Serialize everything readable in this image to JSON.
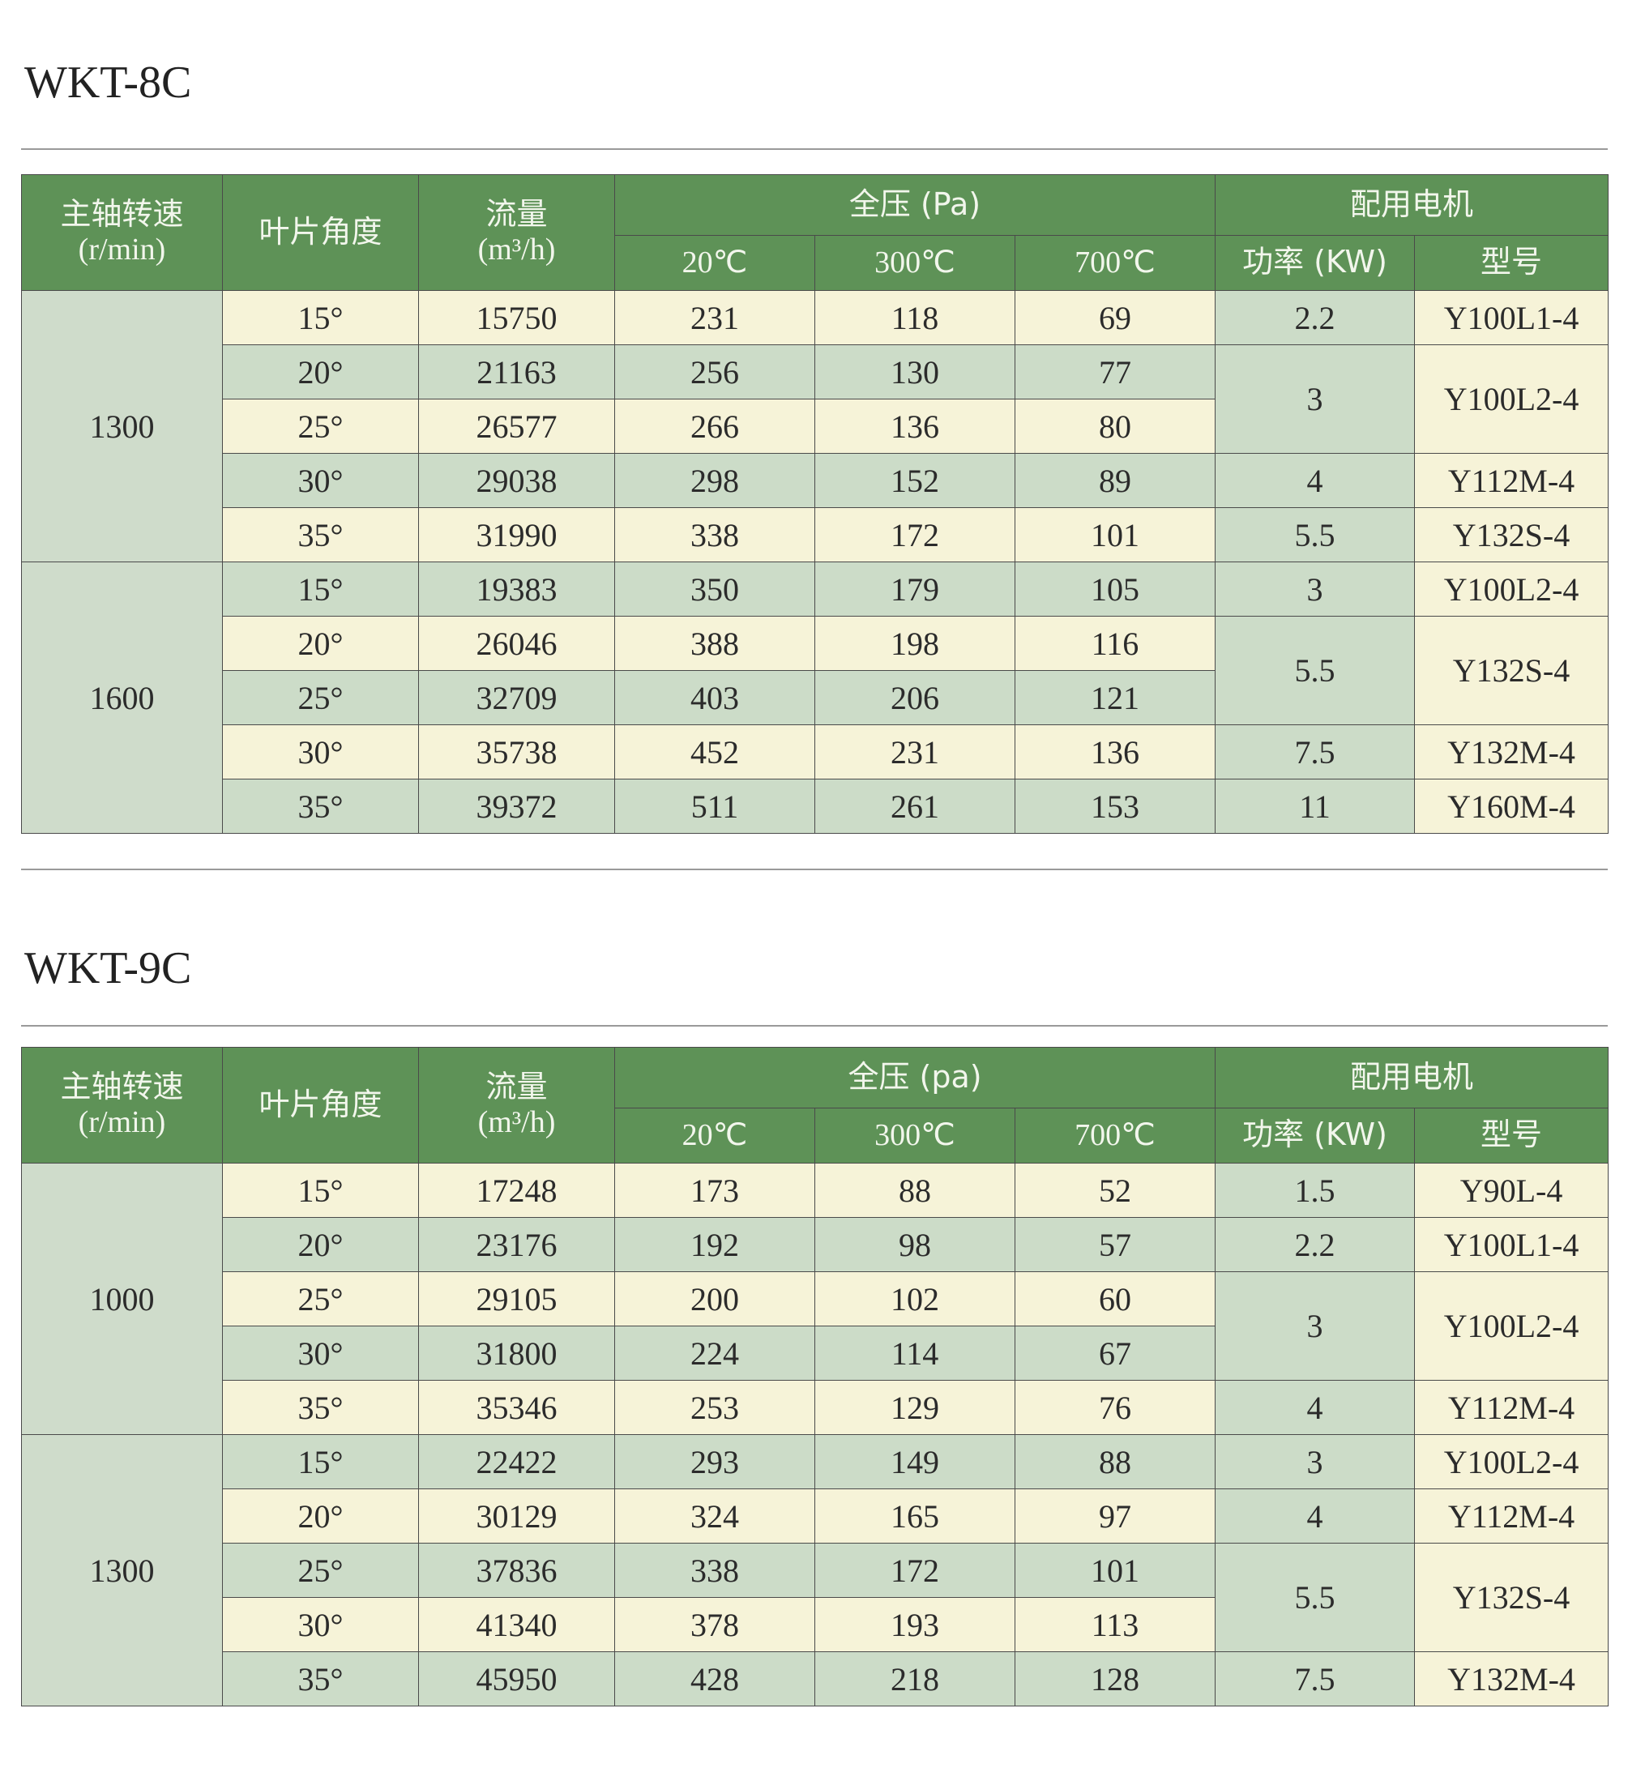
{
  "sections": [
    {
      "title": "WKT-8C",
      "headers": {
        "speed": "主轴转速",
        "speed_unit": "(r/min)",
        "angle": "叶片角度",
        "flow": "流量",
        "flow_unit": "(m³/h)",
        "pressure": "全压 (Pa)",
        "t20": "20℃",
        "t300": "300℃",
        "t700": "700℃",
        "motor": "配用电机",
        "power": "功率 (KW)",
        "model": "型号"
      },
      "speeds": [
        "1300",
        "1600"
      ],
      "rows": [
        {
          "angle": "15°",
          "flow": "15750",
          "p20": "231",
          "p300": "118",
          "p700": "69"
        },
        {
          "angle": "20°",
          "flow": "21163",
          "p20": "256",
          "p300": "130",
          "p700": "77"
        },
        {
          "angle": "25°",
          "flow": "26577",
          "p20": "266",
          "p300": "136",
          "p700": "80"
        },
        {
          "angle": "30°",
          "flow": "29038",
          "p20": "298",
          "p300": "152",
          "p700": "89"
        },
        {
          "angle": "35°",
          "flow": "31990",
          "p20": "338",
          "p300": "172",
          "p700": "101"
        },
        {
          "angle": "15°",
          "flow": "19383",
          "p20": "350",
          "p300": "179",
          "p700": "105"
        },
        {
          "angle": "20°",
          "flow": "26046",
          "p20": "388",
          "p300": "198",
          "p700": "116"
        },
        {
          "angle": "25°",
          "flow": "32709",
          "p20": "403",
          "p300": "206",
          "p700": "121"
        },
        {
          "angle": "30°",
          "flow": "35738",
          "p20": "452",
          "p300": "231",
          "p700": "136"
        },
        {
          "angle": "35°",
          "flow": "39372",
          "p20": "511",
          "p300": "261",
          "p700": "153"
        }
      ],
      "motors": [
        {
          "power": "2.2",
          "model": "Y100L1-4"
        },
        {
          "power": "3",
          "model": "Y100L2-4"
        },
        {
          "power": "4",
          "model": "Y112M-4"
        },
        {
          "power": "5.5",
          "model": "Y132S-4"
        },
        {
          "power": "3",
          "model": "Y100L2-4"
        },
        {
          "power": "5.5",
          "model": "Y132S-4"
        },
        {
          "power": "7.5",
          "model": "Y132M-4"
        },
        {
          "power": "11",
          "model": "Y160M-4"
        }
      ]
    },
    {
      "title": "WKT-9C",
      "headers": {
        "speed": "主轴转速",
        "speed_unit": "(r/min)",
        "angle": "叶片角度",
        "flow": "流量",
        "flow_unit": "(m³/h)",
        "pressure": "全压 (pa)",
        "t20": "20℃",
        "t300": "300℃",
        "t700": "700℃",
        "motor": "配用电机",
        "power": "功率 (KW)",
        "model": "型号"
      },
      "speeds": [
        "1000",
        "1300"
      ],
      "rows": [
        {
          "angle": "15°",
          "flow": "17248",
          "p20": "173",
          "p300": "88",
          "p700": "52"
        },
        {
          "angle": "20°",
          "flow": "23176",
          "p20": "192",
          "p300": "98",
          "p700": "57"
        },
        {
          "angle": "25°",
          "flow": "29105",
          "p20": "200",
          "p300": "102",
          "p700": "60"
        },
        {
          "angle": "30°",
          "flow": "31800",
          "p20": "224",
          "p300": "114",
          "p700": "67"
        },
        {
          "angle": "35°",
          "flow": "35346",
          "p20": "253",
          "p300": "129",
          "p700": "76"
        },
        {
          "angle": "15°",
          "flow": "22422",
          "p20": "293",
          "p300": "149",
          "p700": "88"
        },
        {
          "angle": "20°",
          "flow": "30129",
          "p20": "324",
          "p300": "165",
          "p700": "97"
        },
        {
          "angle": "25°",
          "flow": "37836",
          "p20": "338",
          "p300": "172",
          "p700": "101"
        },
        {
          "angle": "30°",
          "flow": "41340",
          "p20": "378",
          "p300": "193",
          "p700": "113"
        },
        {
          "angle": "35°",
          "flow": "45950",
          "p20": "428",
          "p300": "218",
          "p700": "128"
        }
      ],
      "motors": [
        {
          "power": "1.5",
          "model": "Y90L-4"
        },
        {
          "power": "2.2",
          "model": "Y100L1-4"
        },
        {
          "power": "3",
          "model": "Y100L2-4"
        },
        {
          "power": "4",
          "model": "Y112M-4"
        },
        {
          "power": "3",
          "model": "Y100L2-4"
        },
        {
          "power": "4",
          "model": "Y112M-4"
        },
        {
          "power": "5.5",
          "model": "Y132S-4"
        },
        {
          "power": "7.5",
          "model": "Y132M-4"
        }
      ]
    }
  ]
}
